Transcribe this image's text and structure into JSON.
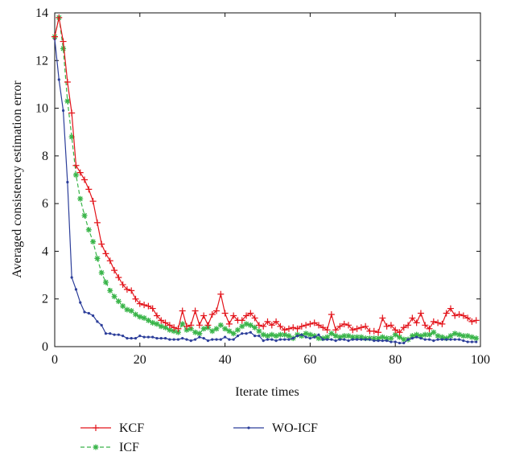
{
  "chart_data": {
    "type": "line",
    "title": "",
    "xlabel": "Iterate times",
    "ylabel": "Averaged consistency estimation error",
    "xlim": [
      0,
      100
    ],
    "ylim": [
      0,
      14
    ],
    "xticks": [
      0,
      20,
      40,
      60,
      80,
      100
    ],
    "yticks": [
      0,
      2,
      4,
      6,
      8,
      10,
      12,
      14
    ],
    "grid": false,
    "legend_position": "bottom",
    "series": [
      {
        "name": "KCF",
        "color": "#e3141b",
        "marker": "plus",
        "line": "solid",
        "y": [
          13.0,
          13.8,
          12.8,
          11.1,
          9.8,
          7.6,
          7.3,
          7.0,
          6.6,
          6.1,
          5.2,
          4.3,
          3.9,
          3.6,
          3.2,
          2.9,
          2.6,
          2.4,
          2.35,
          2.0,
          1.8,
          1.75,
          1.7,
          1.6,
          1.3,
          1.1,
          1.0,
          0.9,
          0.8,
          0.75,
          1.5,
          0.85,
          0.9,
          1.5,
          0.9,
          1.3,
          0.9,
          1.35,
          1.5,
          2.2,
          1.4,
          0.95,
          1.3,
          1.1,
          1.1,
          1.3,
          1.4,
          1.2,
          0.9,
          0.85,
          1.05,
          0.9,
          1.05,
          0.85,
          0.7,
          0.75,
          0.8,
          0.75,
          0.85,
          0.9,
          0.95,
          1.0,
          0.9,
          0.8,
          0.7,
          1.35,
          0.7,
          0.85,
          0.95,
          0.9,
          0.7,
          0.75,
          0.8,
          0.85,
          0.65,
          0.65,
          0.6,
          1.2,
          0.85,
          0.9,
          0.7,
          0.6,
          0.8,
          0.9,
          1.2,
          1.0,
          1.4,
          0.9,
          0.75,
          1.05,
          1.0,
          0.95,
          1.4,
          1.6,
          1.3,
          1.35,
          1.3,
          1.2,
          1.05,
          1.1
        ]
      },
      {
        "name": "ICF",
        "color": "#3ab54a",
        "marker": "star",
        "line": "dashed",
        "y": [
          13.0,
          13.8,
          12.5,
          10.3,
          8.8,
          7.2,
          6.2,
          5.5,
          4.9,
          4.4,
          3.7,
          3.1,
          2.7,
          2.35,
          2.1,
          1.9,
          1.7,
          1.55,
          1.5,
          1.35,
          1.25,
          1.2,
          1.1,
          1.0,
          0.95,
          0.85,
          0.8,
          0.7,
          0.65,
          0.6,
          0.95,
          0.7,
          0.75,
          0.6,
          0.55,
          0.75,
          0.8,
          0.65,
          0.75,
          0.9,
          0.75,
          0.65,
          0.55,
          0.7,
          0.85,
          0.95,
          0.9,
          0.8,
          0.65,
          0.5,
          0.45,
          0.5,
          0.45,
          0.5,
          0.5,
          0.45,
          0.35,
          0.5,
          0.45,
          0.55,
          0.5,
          0.45,
          0.35,
          0.35,
          0.4,
          0.55,
          0.45,
          0.4,
          0.45,
          0.45,
          0.4,
          0.4,
          0.4,
          0.35,
          0.35,
          0.35,
          0.35,
          0.4,
          0.35,
          0.35,
          0.5,
          0.4,
          0.3,
          0.3,
          0.45,
          0.5,
          0.45,
          0.5,
          0.5,
          0.6,
          0.45,
          0.4,
          0.35,
          0.45,
          0.55,
          0.5,
          0.45,
          0.45,
          0.4,
          0.35
        ]
      },
      {
        "name": "WO-ICF",
        "color": "#2c3e9a",
        "marker": "dot",
        "line": "solid",
        "y": [
          12.9,
          11.2,
          9.9,
          6.9,
          2.9,
          2.4,
          1.85,
          1.45,
          1.4,
          1.3,
          1.05,
          0.9,
          0.55,
          0.55,
          0.5,
          0.5,
          0.45,
          0.35,
          0.35,
          0.35,
          0.45,
          0.4,
          0.4,
          0.4,
          0.35,
          0.35,
          0.35,
          0.3,
          0.3,
          0.3,
          0.35,
          0.3,
          0.25,
          0.3,
          0.4,
          0.35,
          0.25,
          0.3,
          0.3,
          0.3,
          0.4,
          0.3,
          0.3,
          0.45,
          0.55,
          0.55,
          0.6,
          0.45,
          0.45,
          0.25,
          0.3,
          0.3,
          0.25,
          0.3,
          0.3,
          0.3,
          0.35,
          0.45,
          0.5,
          0.4,
          0.35,
          0.4,
          0.5,
          0.3,
          0.3,
          0.3,
          0.25,
          0.3,
          0.3,
          0.25,
          0.3,
          0.3,
          0.3,
          0.3,
          0.3,
          0.25,
          0.25,
          0.25,
          0.25,
          0.2,
          0.2,
          0.15,
          0.15,
          0.3,
          0.35,
          0.4,
          0.35,
          0.3,
          0.3,
          0.25,
          0.3,
          0.3,
          0.3,
          0.3,
          0.3,
          0.3,
          0.25,
          0.2,
          0.2,
          0.2
        ]
      }
    ]
  }
}
